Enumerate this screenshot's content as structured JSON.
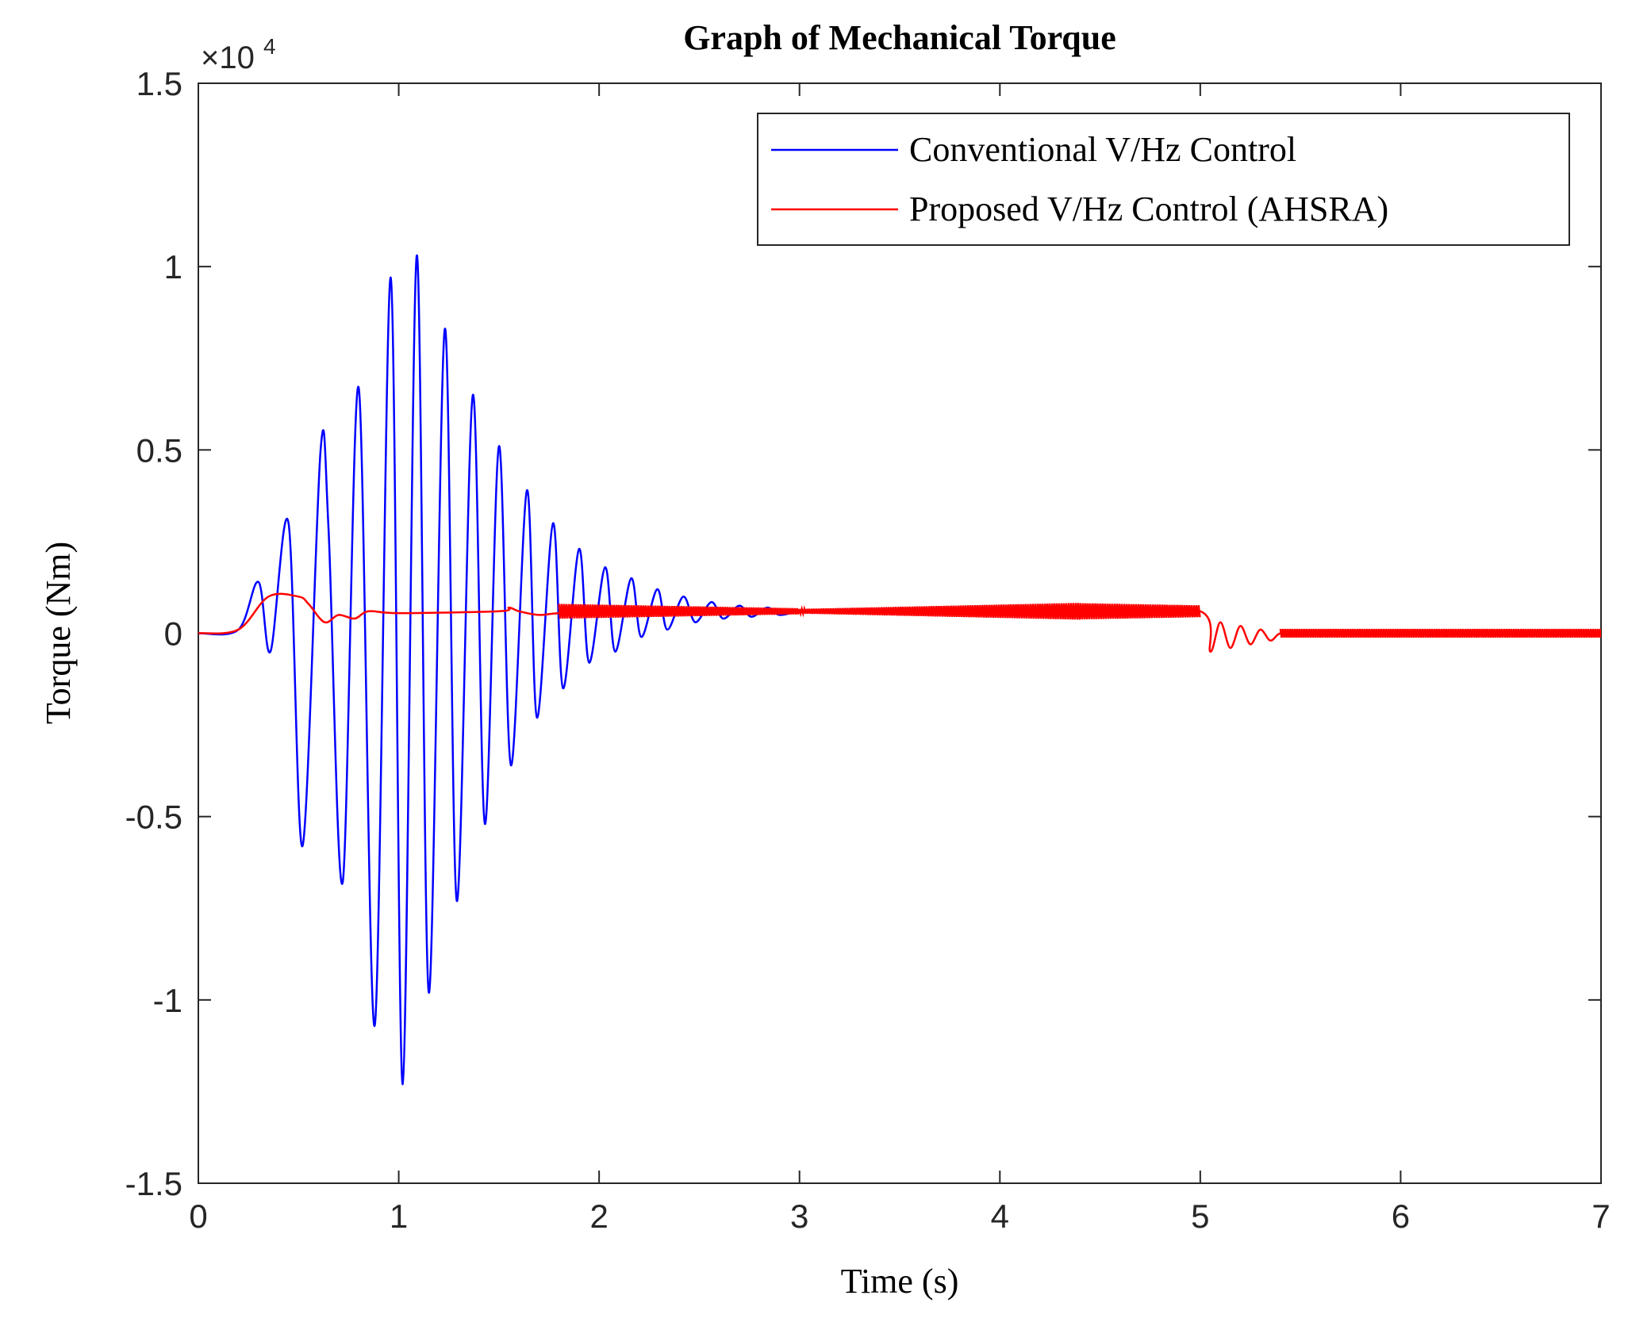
{
  "chart_data": {
    "type": "line",
    "title": "Graph of Mechanical Torque",
    "xlabel": "Time (s)",
    "ylabel": "Torque (Nm)",
    "y_multiplier_base": "×10",
    "y_multiplier_exponent": "4",
    "xlim": [
      0,
      7
    ],
    "ylim": [
      -1.5,
      1.5
    ],
    "xticks": [
      0,
      1,
      2,
      3,
      4,
      5,
      6,
      7
    ],
    "xtick_labels": [
      "0",
      "1",
      "2",
      "3",
      "4",
      "5",
      "6",
      "7"
    ],
    "yticks": [
      -1.5,
      -1,
      -0.5,
      0,
      0.5,
      1,
      1.5
    ],
    "ytick_labels": [
      "-1.5",
      "-1",
      "-0.5",
      "0",
      "0.5",
      "1",
      "1.5"
    ],
    "grid": false,
    "legend_position": "top-right",
    "series": [
      {
        "name": "Conventional V/Hz Control",
        "color": "#0000ff",
        "description": "Oscillating torque; peaks ≈ 1.03 at t≈1.1 s, troughs ≈ -1.23 at t≈1.0 s, decays to ≈0.06 by t≈3 s",
        "x": [
          0.0,
          0.2,
          0.3,
          0.36,
          0.45,
          0.52,
          0.61,
          0.65,
          0.72,
          0.8,
          0.88,
          0.96,
          1.02,
          1.09,
          1.15,
          1.23,
          1.29,
          1.37,
          1.43,
          1.5,
          1.56,
          1.64,
          1.69,
          1.77,
          1.82,
          1.9,
          1.95,
          2.03,
          2.08,
          2.16,
          2.21,
          2.29,
          2.34,
          2.42,
          2.48,
          2.56,
          2.62,
          2.7,
          2.76,
          2.84,
          2.9,
          3.0,
          3.1
        ],
        "y": [
          0.0,
          0.01,
          0.14,
          -0.05,
          0.3,
          -0.58,
          0.5,
          0.28,
          -0.68,
          0.67,
          -1.07,
          0.97,
          -1.23,
          1.03,
          -0.98,
          0.83,
          -0.73,
          0.65,
          -0.52,
          0.51,
          -0.36,
          0.39,
          -0.23,
          0.3,
          -0.15,
          0.23,
          -0.08,
          0.18,
          -0.05,
          0.15,
          -0.01,
          0.12,
          0.01,
          0.1,
          0.03,
          0.085,
          0.04,
          0.075,
          0.045,
          0.07,
          0.05,
          0.06,
          0.06
        ]
      },
      {
        "name": "Proposed V/Hz Control (AHSRA)",
        "color": "#ff0000",
        "description": "Smooth rise to ≈0.06 with small ripple; load step at t=5 s drops to ≈-0.05 then settles near 0",
        "x": [
          0.0,
          0.2,
          0.35,
          0.5,
          0.55,
          0.63,
          0.7,
          0.78,
          0.85,
          1.0,
          1.5,
          1.55,
          1.6,
          1.7,
          1.8,
          2.0,
          3.0,
          4.0,
          4.5,
          5.0,
          5.05,
          5.1,
          5.15,
          5.2,
          5.25,
          5.3,
          5.35,
          5.4,
          5.5,
          6.0,
          7.0
        ],
        "y": [
          0.0,
          0.01,
          0.1,
          0.1,
          0.08,
          0.03,
          0.05,
          0.04,
          0.06,
          0.055,
          0.06,
          0.07,
          0.06,
          0.05,
          0.055,
          0.058,
          0.06,
          0.06,
          0.06,
          0.06,
          -0.05,
          0.03,
          -0.04,
          0.02,
          -0.03,
          0.01,
          -0.02,
          0.0,
          0.0,
          0.0,
          0.0
        ]
      }
    ]
  }
}
